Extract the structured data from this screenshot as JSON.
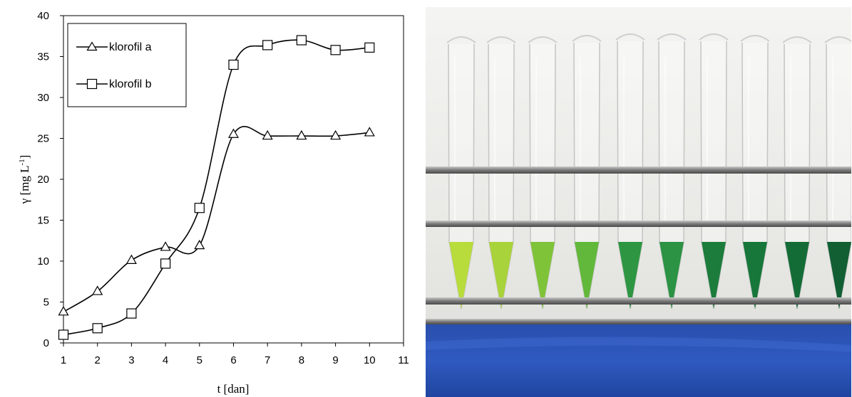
{
  "chart_data": {
    "type": "line",
    "xlabel": "t [dan]",
    "ylabel": "γ [mg L",
    "ylabel_superscript": "-1",
    "ylabel_suffix": "]",
    "xlim": [
      1,
      11
    ],
    "ylim": [
      0,
      40
    ],
    "xticks": [
      1,
      2,
      3,
      4,
      5,
      6,
      7,
      8,
      9,
      10,
      11
    ],
    "yticks": [
      0,
      5,
      10,
      15,
      20,
      25,
      30,
      35,
      40
    ],
    "grid": false,
    "legend_position": "top-left",
    "series": [
      {
        "name": "klorofil a",
        "marker": "triangle",
        "x": [
          1,
          2,
          3,
          4,
          5,
          6,
          7,
          8,
          9,
          10
        ],
        "y": [
          3.8,
          6.3,
          10.1,
          11.7,
          11.9,
          25.5,
          25.3,
          25.3,
          25.3,
          25.7
        ]
      },
      {
        "name": "klorofil b",
        "marker": "square",
        "x": [
          1,
          2,
          3,
          4,
          5,
          6,
          7,
          8,
          9,
          10
        ],
        "y": [
          1.0,
          1.8,
          3.6,
          9.7,
          16.5,
          34.0,
          36.4,
          37.0,
          35.8,
          36.1
        ]
      }
    ]
  },
  "photo": {
    "tube_colors": [
      "#b7dc3c",
      "#a9d33a",
      "#7fc338",
      "#62b83a",
      "#2e9642",
      "#2b9343",
      "#1c7c3c",
      "#17773a",
      "#136c36",
      "#115f33"
    ]
  }
}
